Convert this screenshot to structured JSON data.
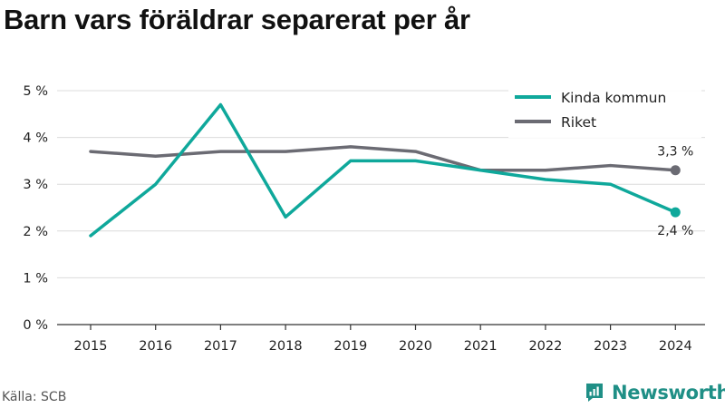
{
  "chart_data": {
    "type": "line",
    "title": "Barn vars föräldrar separerat per år",
    "xlabel": "",
    "ylabel": "",
    "x": [
      "2015",
      "2016",
      "2017",
      "2018",
      "2019",
      "2020",
      "2021",
      "2022",
      "2023",
      "2024"
    ],
    "ylim": [
      0,
      5
    ],
    "yticks": [
      0,
      1,
      2,
      3,
      4,
      5
    ],
    "ytick_labels": [
      "0 %",
      "1 %",
      "2 %",
      "3 %",
      "4 %",
      "5 %"
    ],
    "grid": true,
    "legend": "top-right",
    "series": [
      {
        "name": "Kinda kommun",
        "color": "#0fa89b",
        "values": [
          1.9,
          3.0,
          4.7,
          2.3,
          3.5,
          3.5,
          3.3,
          3.1,
          3.0,
          2.4
        ],
        "end_label": "2,4 %"
      },
      {
        "name": "Riket",
        "color": "#6b6b73",
        "values": [
          3.7,
          3.6,
          3.7,
          3.7,
          3.8,
          3.7,
          3.3,
          3.3,
          3.4,
          3.3
        ],
        "end_label": "3,3 %"
      }
    ]
  },
  "footer": {
    "source": "Källa: SCB",
    "brand": "Newsworthy",
    "brand_color": "#1f8f86"
  }
}
